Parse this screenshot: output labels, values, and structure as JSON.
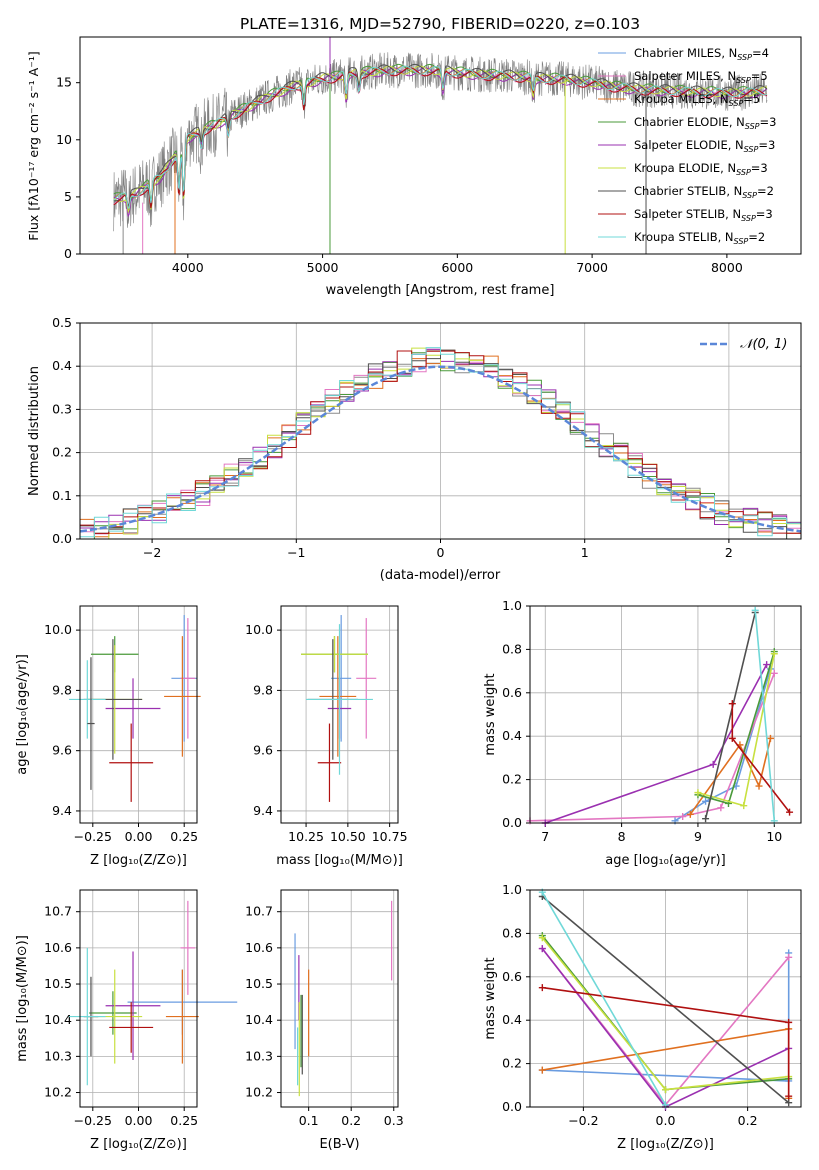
{
  "figure_title": "PLATE=1316, MJD=52790, FIBERID=0220, z=0.103",
  "colors": {
    "models": [
      "#8a8a8a",
      "#e377c2",
      "#e07020",
      "#4a9a3a",
      "#9a30b0",
      "#c8e040",
      "#505050",
      "#b01010",
      "#70d8d8"
    ],
    "gauss": "#5b87d8"
  },
  "chart_data": [
    {
      "type": "line",
      "panel": "spectrum",
      "title": "PLATE=1316, MJD=52790, FIBERID=0220, z=0.103",
      "xlabel": "wavelength [Angstrom, rest frame]",
      "ylabel": "Flux [fλ10⁻¹⁷ erg cm⁻² s⁻¹ A⁻¹]",
      "xlim": [
        3200,
        8550
      ],
      "ylim": [
        0,
        19
      ],
      "xticks": [
        "4000",
        "5000",
        "6000",
        "7000",
        "8000"
      ],
      "yticks": [
        "0",
        "5",
        "10",
        "15"
      ],
      "legend_position": "right",
      "legend": [
        {
          "label": "Chabrier MILES, N",
          "sub": "SSP",
          "tail": "=4",
          "color": "#6a9ce0"
        },
        {
          "label": "Salpeter MILES, N",
          "sub": "SSP",
          "tail": "=5",
          "color": "#e377c2"
        },
        {
          "label": "Kroupa MILES, N",
          "sub": "SSP",
          "tail": "=5",
          "color": "#e07020"
        },
        {
          "label": "Chabrier ELODIE, N",
          "sub": "SSP",
          "tail": "=3",
          "color": "#4a9a3a"
        },
        {
          "label": "Salpeter ELODIE, N",
          "sub": "SSP",
          "tail": "=3",
          "color": "#9a30b0"
        },
        {
          "label": "Kroupa ELODIE, N",
          "sub": "SSP",
          "tail": "=3",
          "color": "#c8e040"
        },
        {
          "label": "Chabrier STELIB, N",
          "sub": "SSP",
          "tail": "=2",
          "color": "#505050"
        },
        {
          "label": "Salpeter STELIB, N",
          "sub": "SSP",
          "tail": "=3",
          "color": "#b01010"
        },
        {
          "label": "Kroupa STELIB, N",
          "sub": "SSP",
          "tail": "=2",
          "color": "#70d8d8"
        }
      ],
      "continuum": {
        "x": [
          3450,
          3600,
          3700,
          3800,
          3900,
          4000,
          4100,
          4200,
          4300,
          4400,
          4500,
          4600,
          4700,
          4800,
          4900,
          5000,
          5100,
          5200,
          5300,
          5400,
          5500,
          5600,
          5800,
          6000,
          6200,
          6400,
          6600,
          6800,
          7000,
          7200,
          7400,
          7600,
          7800,
          8000,
          8200,
          8300
        ],
        "y": [
          4.8,
          5.2,
          6.0,
          6.8,
          8.5,
          10.2,
          10.8,
          11.3,
          12.0,
          12.6,
          13.2,
          13.8,
          14.3,
          14.8,
          15.0,
          15.4,
          15.5,
          15.8,
          15.9,
          16.0,
          16.1,
          16.1,
          16.1,
          15.9,
          15.7,
          15.6,
          15.4,
          15.3,
          15.0,
          14.6,
          14.4,
          14.3,
          14.2,
          14.1,
          14.2,
          14.3
        ]
      },
      "features": [
        {
          "x": 3560,
          "y": 3.8
        },
        {
          "x": 3727,
          "y": 4.2
        },
        {
          "x": 3934,
          "y": 5.5
        },
        {
          "x": 3969,
          "y": 5.0
        },
        {
          "x": 4101,
          "y": 9.5
        },
        {
          "x": 4300,
          "y": 10.5
        },
        {
          "x": 4861,
          "y": 13.0
        },
        {
          "x": 5175,
          "y": 13.7
        },
        {
          "x": 5270,
          "y": 14.5
        },
        {
          "x": 5893,
          "y": 14.4
        },
        {
          "x": 6563,
          "y": 14.0
        }
      ],
      "spikes": [
        {
          "x": 3520,
          "y0": 4.5,
          "y1": 0
        },
        {
          "x": 3665,
          "y0": 4.5,
          "y1": 0
        },
        {
          "x": 3905,
          "y0": 8.0,
          "y1": 0
        },
        {
          "x": 5055,
          "y0": 15.0,
          "y1": 0
        },
        {
          "x": 5055,
          "y0": 15.0,
          "y1": 19
        },
        {
          "x": 6800,
          "y0": 15.3,
          "y1": 0
        },
        {
          "x": 7400,
          "y0": 14.4,
          "y1": 0
        }
      ]
    },
    {
      "type": "histogram",
      "panel": "residuals",
      "xlabel": "(data-model)/error",
      "ylabel": "Normed distribution",
      "xlim": [
        -2.5,
        2.5
      ],
      "ylim": [
        0,
        0.5
      ],
      "xticks": [
        "−2",
        "−1",
        "0",
        "1",
        "2"
      ],
      "yticks": [
        "0.0",
        "0.1",
        "0.2",
        "0.3",
        "0.4",
        "0.5"
      ],
      "bin_width": 0.1,
      "legend": "𝒩(0, 1)",
      "legend_position": "top-right"
    },
    {
      "type": "scatter",
      "panel": "age-vs-Z",
      "xlabel": "Z [log₁₀(Z/Z⊙)]",
      "ylabel": "age  [log₁₀(age/yr)]",
      "xlim": [
        -0.32,
        0.32
      ],
      "ylim": [
        9.36,
        10.08
      ],
      "xticks": [
        "−0.25",
        "0.00",
        "0.25"
      ],
      "yticks": [
        "9.4",
        "9.6",
        "9.8",
        "10.0"
      ],
      "points": [
        {
          "x": 0.25,
          "y": 9.84,
          "xerr": 0.07,
          "yerr": 0.21,
          "color": "#6a9ce0"
        },
        {
          "x": 0.27,
          "y": 9.84,
          "xerr": 0.04,
          "yerr": 0.2,
          "color": "#e377c2"
        },
        {
          "x": 0.24,
          "y": 9.78,
          "xerr": 0.1,
          "yerr": 0.2,
          "color": "#e07020"
        },
        {
          "x": -0.13,
          "y": 9.92,
          "xerr": 0.13,
          "yerr": 0.06,
          "color": "#4a9a3a"
        },
        {
          "x": -0.03,
          "y": 9.74,
          "xerr": 0.15,
          "yerr": 0.1,
          "color": "#9a30b0"
        },
        {
          "x": -0.13,
          "y": 9.77,
          "xerr": 0.15,
          "yerr": 0.18,
          "color": "#c8e040"
        },
        {
          "x": -0.14,
          "y": 9.77,
          "xerr": 0.16,
          "yerr": 0.2,
          "color": "#505050"
        },
        {
          "x": -0.04,
          "y": 9.56,
          "xerr": 0.12,
          "yerr": 0.13,
          "color": "#b01010"
        },
        {
          "x": -0.28,
          "y": 9.77,
          "xerr": 0.1,
          "yerr": 0.13,
          "color": "#70d8d8"
        },
        {
          "x": -0.26,
          "y": 9.69,
          "xerr": 0.02,
          "yerr": 0.22,
          "color": "#505050"
        }
      ]
    },
    {
      "type": "scatter",
      "panel": "age-vs-mass",
      "xlabel": "mass [log₁₀(M/M⊙)]",
      "ylabel": "",
      "xlim": [
        10.1,
        10.8
      ],
      "ylim": [
        9.36,
        10.08
      ],
      "xticks": [
        "10.25",
        "10.50",
        "10.75"
      ],
      "yticks": [
        "9.4",
        "9.6",
        "9.8",
        "10.0"
      ],
      "points": [
        {
          "x": 10.46,
          "y": 9.84,
          "xerr": 0.06,
          "yerr": 0.21,
          "color": "#6a9ce0"
        },
        {
          "x": 10.61,
          "y": 9.84,
          "xerr": 0.06,
          "yerr": 0.2,
          "color": "#e377c2"
        },
        {
          "x": 10.44,
          "y": 9.78,
          "xerr": 0.11,
          "yerr": 0.2,
          "color": "#e07020"
        },
        {
          "x": 10.42,
          "y": 9.92,
          "xerr": 0.2,
          "yerr": 0.06,
          "color": "#4a9a3a"
        },
        {
          "x": 10.45,
          "y": 9.74,
          "xerr": 0.07,
          "yerr": 0.1,
          "color": "#9a30b0"
        },
        {
          "x": 10.42,
          "y": 9.92,
          "xerr": 0.2,
          "yerr": 0.06,
          "color": "#c8e040"
        },
        {
          "x": 10.41,
          "y": 9.77,
          "xerr": 0.15,
          "yerr": 0.2,
          "color": "#505050"
        },
        {
          "x": 10.39,
          "y": 9.56,
          "xerr": 0.07,
          "yerr": 0.13,
          "color": "#b01010"
        },
        {
          "x": 10.45,
          "y": 9.77,
          "xerr": 0.2,
          "yerr": 0.25,
          "color": "#70d8d8"
        }
      ]
    },
    {
      "type": "line",
      "panel": "mass-weight-vs-age",
      "xlabel": "age  [log₁₀(age/yr)]",
      "ylabel": "mass weight",
      "xlim": [
        6.8,
        10.35
      ],
      "ylim": [
        0,
        1
      ],
      "xticks": [
        "7",
        "8",
        "9",
        "10"
      ],
      "yticks": [
        "0.0",
        "0.2",
        "0.4",
        "0.6",
        "0.8",
        "1.0"
      ],
      "series": [
        {
          "color": "#6a9ce0",
          "x": [
            8.7,
            9.1,
            9.5,
            9.95
          ],
          "y": [
            0.01,
            0.1,
            0.17,
            0.71
          ]
        },
        {
          "color": "#e377c2",
          "x": [
            6.8,
            8.8,
            9.3,
            10.0
          ],
          "y": [
            0.01,
            0.03,
            0.07,
            0.69
          ]
        },
        {
          "color": "#e07020",
          "x": [
            8.9,
            9.55,
            9.8,
            9.95
          ],
          "y": [
            0.04,
            0.36,
            0.17,
            0.39
          ]
        },
        {
          "color": "#4a9a3a",
          "x": [
            9.0,
            9.4,
            10.0
          ],
          "y": [
            0.13,
            0.09,
            0.79
          ]
        },
        {
          "color": "#9a30b0",
          "x": [
            7.0,
            9.2,
            9.9
          ],
          "y": [
            0.0,
            0.27,
            0.73
          ]
        },
        {
          "color": "#c8e040",
          "x": [
            9.0,
            9.6,
            10.0
          ],
          "y": [
            0.14,
            0.08,
            0.78
          ]
        },
        {
          "color": "#505050",
          "x": [
            9.1,
            9.75
          ],
          "y": [
            0.02,
            0.97
          ]
        },
        {
          "color": "#b01010",
          "x": [
            9.45,
            9.45,
            10.2
          ],
          "y": [
            0.55,
            0.39,
            0.05
          ]
        },
        {
          "color": "#70d8d8",
          "x": [
            9.75,
            10.0
          ],
          "y": [
            0.98,
            0.01
          ]
        }
      ]
    },
    {
      "type": "scatter",
      "panel": "mass-vs-Z",
      "xlabel": "Z [log₁₀(Z/Z⊙)]",
      "ylabel": "mass [log₁₀(M/M⊙)]",
      "xlim": [
        -0.32,
        0.32
      ],
      "ylim": [
        10.16,
        10.76
      ],
      "xticks": [
        "−0.25",
        "0.00",
        "0.25"
      ],
      "yticks": [
        "10.2",
        "10.3",
        "10.4",
        "10.5",
        "10.6",
        "10.7"
      ],
      "points": [
        {
          "x": 0.24,
          "y": 10.45,
          "xerr": 0.3,
          "yerr": 0.09,
          "color": "#6a9ce0"
        },
        {
          "x": 0.27,
          "y": 10.6,
          "xerr": 0.04,
          "yerr": 0.13,
          "color": "#e377c2"
        },
        {
          "x": 0.24,
          "y": 10.41,
          "xerr": 0.09,
          "yerr": 0.13,
          "color": "#e07020"
        },
        {
          "x": -0.14,
          "y": 10.42,
          "xerr": 0.13,
          "yerr": 0.06,
          "color": "#4a9a3a"
        },
        {
          "x": -0.03,
          "y": 10.44,
          "xerr": 0.15,
          "yerr": 0.15,
          "color": "#9a30b0"
        },
        {
          "x": -0.13,
          "y": 10.41,
          "xerr": 0.15,
          "yerr": 0.13,
          "color": "#c8e040"
        },
        {
          "x": -0.26,
          "y": 10.41,
          "xerr": 0.04,
          "yerr": 0.11,
          "color": "#505050"
        },
        {
          "x": -0.04,
          "y": 10.38,
          "xerr": 0.12,
          "yerr": 0.07,
          "color": "#b01010"
        },
        {
          "x": -0.28,
          "y": 10.41,
          "xerr": 0.1,
          "yerr": 0.19,
          "color": "#70d8d8"
        }
      ]
    },
    {
      "type": "scatter",
      "panel": "mass-vs-ebv",
      "xlabel": "E(B-V)",
      "ylabel": "",
      "xlim": [
        0.035,
        0.31
      ],
      "ylim": [
        10.16,
        10.76
      ],
      "xticks": [
        "0.1",
        "0.2",
        "0.3"
      ],
      "yticks": [
        "10.2",
        "10.3",
        "10.4",
        "10.5",
        "10.6",
        "10.7"
      ],
      "points": [
        {
          "x": 0.068,
          "y": 10.48,
          "xerr": 0,
          "yerr": 0.16,
          "color": "#6a9ce0"
        },
        {
          "x": 0.295,
          "y": 10.62,
          "xerr": 0,
          "yerr": 0.11,
          "color": "#e377c2"
        },
        {
          "x": 0.1,
          "y": 10.42,
          "xerr": 0,
          "yerr": 0.12,
          "color": "#e07020"
        },
        {
          "x": 0.082,
          "y": 10.37,
          "xerr": 0,
          "yerr": 0.1,
          "color": "#4a9a3a"
        },
        {
          "x": 0.077,
          "y": 10.49,
          "xerr": 0,
          "yerr": 0.09,
          "color": "#9a30b0"
        },
        {
          "x": 0.078,
          "y": 10.32,
          "xerr": 0,
          "yerr": 0.13,
          "color": "#c8e040"
        },
        {
          "x": 0.085,
          "y": 10.36,
          "xerr": 0,
          "yerr": 0.11,
          "color": "#505050"
        },
        {
          "x": 0.074,
          "y": 10.3,
          "xerr": 0,
          "yerr": 0.08,
          "color": "#70d8d8"
        }
      ]
    },
    {
      "type": "line",
      "panel": "mass-weight-vs-Z",
      "xlabel": "Z [log₁₀(Z/Z⊙)]",
      "ylabel": "mass weight",
      "xlim": [
        -0.33,
        0.33
      ],
      "ylim": [
        0,
        1
      ],
      "xticks": [
        "−0.2",
        "0.0",
        "0.2"
      ],
      "yticks": [
        "0.0",
        "0.2",
        "0.4",
        "0.6",
        "0.8",
        "1.0"
      ],
      "series": [
        {
          "color": "#6a9ce0",
          "x": [
            -0.3,
            0.3,
            0.3
          ],
          "y": [
            0.17,
            0.12,
            0.71
          ]
        },
        {
          "color": "#e377c2",
          "x": [
            -0.3,
            0.0,
            0.3
          ],
          "y": [
            0.73,
            0.01,
            0.69
          ]
        },
        {
          "color": "#e07020",
          "x": [
            -0.3,
            0.3,
            0.3
          ],
          "y": [
            0.17,
            0.36,
            0.04
          ]
        },
        {
          "color": "#4a9a3a",
          "x": [
            -0.3,
            0.0,
            0.3
          ],
          "y": [
            0.79,
            0.08,
            0.13
          ]
        },
        {
          "color": "#9a30b0",
          "x": [
            -0.3,
            0.0,
            0.3
          ],
          "y": [
            0.73,
            0.0,
            0.27
          ]
        },
        {
          "color": "#c8e040",
          "x": [
            -0.3,
            0.0,
            0.3
          ],
          "y": [
            0.78,
            0.08,
            0.14
          ]
        },
        {
          "color": "#505050",
          "x": [
            -0.3,
            0.3
          ],
          "y": [
            0.97,
            0.02
          ]
        },
        {
          "color": "#b01010",
          "x": [
            -0.3,
            0.3,
            0.3
          ],
          "y": [
            0.55,
            0.39,
            0.05
          ]
        },
        {
          "color": "#70d8d8",
          "x": [
            -0.3,
            0.0
          ],
          "y": [
            0.99,
            0.01
          ]
        }
      ]
    }
  ]
}
